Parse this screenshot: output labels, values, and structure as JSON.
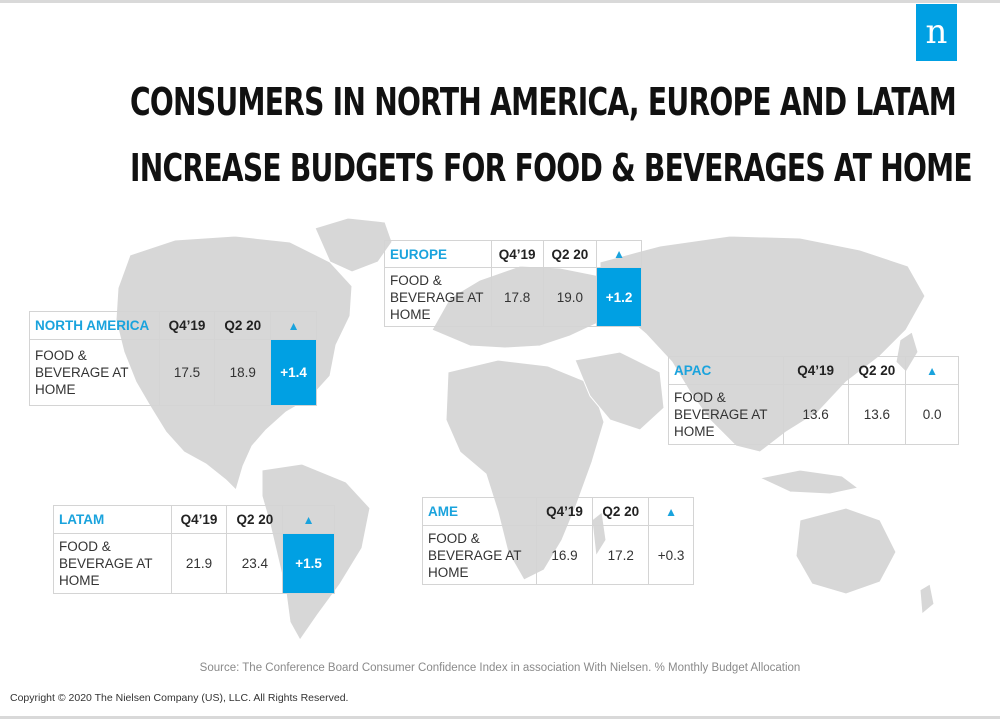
{
  "brand": {
    "logo_letter": "n",
    "accent_color": "#00a0e3"
  },
  "title": {
    "line1": "CONSUMERS IN NORTH AMERICA, EUROPE AND LATAM",
    "line2": "INCREASE BUDGETS FOR FOOD & BEVERAGES AT HOME"
  },
  "map": {
    "icon": "world-map"
  },
  "regions": {
    "europe": {
      "name": "EUROPE",
      "col1": "Q4’19",
      "col2": "Q2 20",
      "col3": "▲",
      "label_line1": "FOOD &",
      "label_line2": "BEVERAGE AT",
      "label_line3": "HOME",
      "v1": "17.8",
      "v2": "19.0",
      "delta": "+1.2",
      "highlight": true
    },
    "north_america": {
      "name": "NORTH AMERICA",
      "col1": "Q4’19",
      "col2": "Q2 20",
      "col3": "▲",
      "label_line1": "FOOD &",
      "label_line2": "BEVERAGE AT",
      "label_line3": "HOME",
      "v1": "17.5",
      "v2": "18.9",
      "delta": "+1.4",
      "highlight": true
    },
    "apac": {
      "name": "APAC",
      "col1": "Q4’19",
      "col2": "Q2 20",
      "col3": "▲",
      "label_line1": "FOOD &",
      "label_line2": "BEVERAGE AT",
      "label_line3": "HOME",
      "v1": "13.6",
      "v2": "13.6",
      "delta": "0.0",
      "highlight": false
    },
    "latam": {
      "name": "LATAM",
      "col1": "Q4’19",
      "col2": "Q2 20",
      "col3": "▲",
      "label_line1": "FOOD &",
      "label_line2": "BEVERAGE AT",
      "label_line3": "HOME",
      "v1": "21.9",
      "v2": "23.4",
      "delta": "+1.5",
      "highlight": true
    },
    "ame": {
      "name": "AME",
      "col1": "Q4’19",
      "col2": "Q2 20",
      "col3": "▲",
      "label_line1": "FOOD &",
      "label_line2": "BEVERAGE AT",
      "label_line3": "HOME",
      "v1": "16.9",
      "v2": "17.2",
      "delta": "+0.3",
      "highlight": false
    }
  },
  "footer": {
    "source": "Source: The Conference Board Consumer Confidence Index in association With Nielsen. % Monthly Budget Allocation",
    "copyright": "Copyright © 2020 The Nielsen Company (US), LLC. All Rights Reserved."
  }
}
